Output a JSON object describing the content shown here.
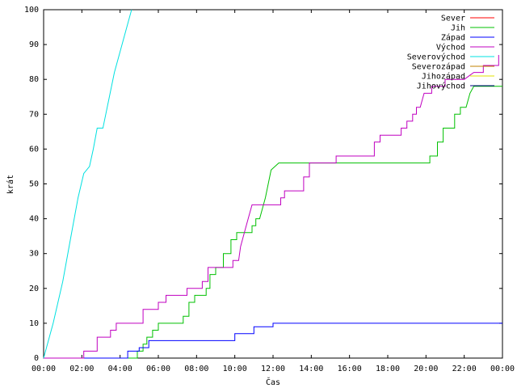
{
  "chart_data": {
    "type": "line",
    "title": "",
    "xlabel": "Čas",
    "ylabel": "krát",
    "xlim": [
      0,
      24
    ],
    "ylim": [
      0,
      100
    ],
    "x_ticks": [
      {
        "value": 0,
        "label": "00:00"
      },
      {
        "value": 2,
        "label": "02:00"
      },
      {
        "value": 4,
        "label": "04:00"
      },
      {
        "value": 6,
        "label": "06:00"
      },
      {
        "value": 8,
        "label": "08:00"
      },
      {
        "value": 10,
        "label": "10:00"
      },
      {
        "value": 12,
        "label": "12:00"
      },
      {
        "value": 14,
        "label": "14:00"
      },
      {
        "value": 16,
        "label": "16:00"
      },
      {
        "value": 18,
        "label": "18:00"
      },
      {
        "value": 20,
        "label": "20:00"
      },
      {
        "value": 22,
        "label": "22:00"
      },
      {
        "value": 24,
        "label": "00:00"
      }
    ],
    "y_ticks": [
      0,
      10,
      20,
      30,
      40,
      50,
      60,
      70,
      80,
      90,
      100
    ],
    "grid": false,
    "legend_position": "top-right",
    "series": [
      {
        "name": "Sever",
        "color": "#ff0000",
        "points": []
      },
      {
        "name": "Jih",
        "color": "#00c000",
        "points": [
          [
            0.0,
            0
          ],
          [
            4.9,
            0
          ],
          [
            4.9,
            2
          ],
          [
            5.2,
            2
          ],
          [
            5.2,
            4
          ],
          [
            5.4,
            4
          ],
          [
            5.4,
            6
          ],
          [
            5.7,
            6
          ],
          [
            5.7,
            8
          ],
          [
            6.0,
            8
          ],
          [
            6.0,
            10
          ],
          [
            7.3,
            10
          ],
          [
            7.3,
            12
          ],
          [
            7.6,
            12
          ],
          [
            7.6,
            16
          ],
          [
            7.9,
            16
          ],
          [
            7.9,
            18
          ],
          [
            8.5,
            18
          ],
          [
            8.5,
            20
          ],
          [
            8.7,
            20
          ],
          [
            8.7,
            24
          ],
          [
            9.0,
            24
          ],
          [
            9.0,
            26
          ],
          [
            9.4,
            26
          ],
          [
            9.4,
            30
          ],
          [
            9.8,
            30
          ],
          [
            9.8,
            34
          ],
          [
            10.1,
            34
          ],
          [
            10.1,
            36
          ],
          [
            10.9,
            36
          ],
          [
            10.9,
            38
          ],
          [
            11.1,
            38
          ],
          [
            11.1,
            40
          ],
          [
            11.3,
            40
          ],
          [
            11.6,
            46
          ],
          [
            11.9,
            54
          ],
          [
            12.3,
            56
          ],
          [
            20.2,
            56
          ],
          [
            20.2,
            58
          ],
          [
            20.6,
            58
          ],
          [
            20.6,
            62
          ],
          [
            20.9,
            62
          ],
          [
            20.9,
            66
          ],
          [
            21.5,
            66
          ],
          [
            21.5,
            70
          ],
          [
            21.8,
            70
          ],
          [
            21.8,
            72
          ],
          [
            22.1,
            72
          ],
          [
            22.3,
            76
          ],
          [
            22.5,
            78
          ],
          [
            24.0,
            78
          ]
        ]
      },
      {
        "name": "Západ",
        "color": "#0000ff",
        "points": [
          [
            0.0,
            0
          ],
          [
            4.4,
            0
          ],
          [
            4.4,
            2
          ],
          [
            5.0,
            2
          ],
          [
            5.0,
            3
          ],
          [
            5.5,
            3
          ],
          [
            5.5,
            5
          ],
          [
            10.0,
            5
          ],
          [
            10.0,
            7
          ],
          [
            11.0,
            7
          ],
          [
            11.0,
            9
          ],
          [
            12.0,
            9
          ],
          [
            12.0,
            10
          ],
          [
            24.0,
            10
          ]
        ]
      },
      {
        "name": "Východ",
        "color": "#c000c0",
        "points": [
          [
            0.0,
            0
          ],
          [
            2.1,
            0
          ],
          [
            2.1,
            2
          ],
          [
            2.8,
            2
          ],
          [
            2.8,
            6
          ],
          [
            3.5,
            6
          ],
          [
            3.5,
            8
          ],
          [
            3.8,
            8
          ],
          [
            3.8,
            10
          ],
          [
            5.2,
            10
          ],
          [
            5.2,
            14
          ],
          [
            6.0,
            14
          ],
          [
            6.0,
            16
          ],
          [
            6.4,
            16
          ],
          [
            6.4,
            18
          ],
          [
            7.5,
            18
          ],
          [
            7.5,
            20
          ],
          [
            8.3,
            20
          ],
          [
            8.3,
            22
          ],
          [
            8.6,
            22
          ],
          [
            8.6,
            26
          ],
          [
            9.9,
            26
          ],
          [
            9.9,
            28
          ],
          [
            10.2,
            28
          ],
          [
            10.3,
            32
          ],
          [
            10.5,
            36
          ],
          [
            10.7,
            40
          ],
          [
            10.9,
            44
          ],
          [
            12.4,
            44
          ],
          [
            12.4,
            46
          ],
          [
            12.6,
            46
          ],
          [
            12.6,
            48
          ],
          [
            13.6,
            48
          ],
          [
            13.6,
            52
          ],
          [
            13.9,
            52
          ],
          [
            13.9,
            56
          ],
          [
            15.3,
            56
          ],
          [
            15.3,
            58
          ],
          [
            17.3,
            58
          ],
          [
            17.3,
            62
          ],
          [
            17.6,
            62
          ],
          [
            17.6,
            64
          ],
          [
            18.7,
            64
          ],
          [
            18.7,
            66
          ],
          [
            19.0,
            66
          ],
          [
            19.0,
            68
          ],
          [
            19.3,
            68
          ],
          [
            19.3,
            70
          ],
          [
            19.5,
            70
          ],
          [
            19.5,
            72
          ],
          [
            19.7,
            72
          ],
          [
            19.9,
            76
          ],
          [
            20.3,
            76
          ],
          [
            20.3,
            78
          ],
          [
            21.0,
            78
          ],
          [
            21.0,
            80
          ],
          [
            22.0,
            80
          ],
          [
            22.5,
            82
          ],
          [
            23.0,
            82
          ],
          [
            23.0,
            84
          ],
          [
            23.8,
            84
          ],
          [
            23.8,
            87
          ]
        ]
      },
      {
        "name": "Severovýchod",
        "color": "#00e0e0",
        "points": [
          [
            0.0,
            0
          ],
          [
            0.5,
            10
          ],
          [
            1.0,
            22
          ],
          [
            1.4,
            34
          ],
          [
            1.8,
            46
          ],
          [
            2.1,
            53
          ],
          [
            2.4,
            55
          ],
          [
            2.6,
            60
          ],
          [
            2.8,
            66
          ],
          [
            3.1,
            66
          ],
          [
            3.4,
            74
          ],
          [
            3.7,
            82
          ],
          [
            4.0,
            88
          ],
          [
            4.3,
            94
          ],
          [
            4.6,
            100
          ]
        ]
      },
      {
        "name": "Severozápad",
        "color": "#c08000",
        "points": []
      },
      {
        "name": "Jihozápad",
        "color": "#e0e000",
        "points": []
      },
      {
        "name": "Jihovýchod",
        "color": "#000080",
        "points": []
      }
    ]
  }
}
